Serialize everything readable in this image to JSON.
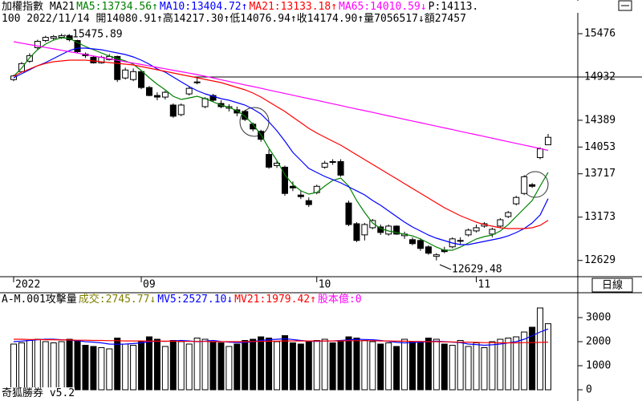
{
  "chart_data": [
    {
      "type": "candlestick",
      "legend_title": "加權指數 MA21",
      "subtitle": "100 2022/11/14 開14080.91↑高14217.30↑低14076.94↑收14174.90↑量7056517↓額27457",
      "notes": [
        {
          "text": "P:14113.",
          "color": "#000000"
        }
      ],
      "categories": [
        "2022",
        null,
        null,
        null,
        null,
        null,
        null,
        null,
        null,
        null,
        null,
        null,
        null,
        null,
        null,
        null,
        "09",
        null,
        null,
        null,
        null,
        null,
        null,
        null,
        null,
        null,
        null,
        null,
        null,
        null,
        null,
        null,
        null,
        null,
        null,
        null,
        null,
        null,
        "10",
        null,
        null,
        null,
        null,
        null,
        null,
        null,
        null,
        null,
        null,
        null,
        null,
        null,
        null,
        null,
        null,
        null,
        null,
        null,
        "11",
        null,
        null,
        null,
        null,
        null,
        null,
        null,
        null,
        null
      ],
      "period_label": "日線",
      "colors": {
        "up": "#ffffff",
        "down": "#000000",
        "edge": "#000000"
      },
      "candles": {
        "open": [
          14900,
          15000,
          15130,
          15300,
          15390,
          15420,
          15430,
          15450,
          15390,
          15220,
          15180,
          15110,
          15150,
          15190,
          14920,
          14900,
          15000,
          14800,
          14700,
          14680,
          14580,
          14460,
          14720,
          14860,
          14560,
          14700,
          14600,
          14540,
          14520,
          14500,
          14340,
          14250,
          13960,
          13820,
          13800,
          13560,
          13450,
          13380,
          13480,
          13800,
          13870,
          13870,
          13350,
          13090,
          12950,
          13040,
          13050,
          12960,
          13060,
          12940,
          12890,
          12880,
          12800,
          12680,
          12760,
          12800,
          12870,
          12950,
          13000,
          13060,
          12960,
          13060,
          13180,
          13340,
          13470,
          13580,
          13920,
          14080.91
        ],
        "high": [
          14960,
          15120,
          15230,
          15400,
          15450,
          15460,
          15475.89,
          15470,
          15400,
          15240,
          15200,
          15200,
          15220,
          15200,
          15050,
          15040,
          15010,
          14820,
          14740,
          14760,
          14600,
          14600,
          14810,
          14920,
          14680,
          14720,
          14640,
          14590,
          14560,
          14520,
          14360,
          14270,
          14020,
          13880,
          13820,
          13620,
          13500,
          13420,
          13580,
          13880,
          13900,
          13900,
          13380,
          13110,
          13100,
          13150,
          13080,
          13080,
          13070,
          12990,
          12920,
          12910,
          12820,
          12720,
          12800,
          12920,
          12920,
          13030,
          13080,
          13110,
          13040,
          13160,
          13250,
          13440,
          13700,
          13600,
          14050,
          14217.3
        ],
        "low": [
          14880,
          14990,
          15110,
          15280,
          15370,
          15400,
          15410,
          15380,
          15230,
          15170,
          15100,
          15100,
          15140,
          14870,
          14900,
          14880,
          14780,
          14690,
          14640,
          14650,
          14420,
          14440,
          14700,
          14840,
          14540,
          14620,
          14540,
          14500,
          14440,
          14380,
          14250,
          14120,
          13780,
          13790,
          13440,
          13500,
          13400,
          13300,
          13460,
          13780,
          13830,
          13680,
          13060,
          12860,
          12880,
          13020,
          12950,
          12940,
          12950,
          12900,
          12820,
          12750,
          12700,
          12629.48,
          12720,
          12780,
          12830,
          12930,
          12980,
          13040,
          12920,
          13040,
          13160,
          13320,
          13450,
          13540,
          13900,
          14076.94
        ],
        "close": [
          14945,
          15100,
          15200,
          15380,
          15430,
          15440,
          15450,
          15400,
          15250,
          15200,
          15110,
          15180,
          15190,
          14900,
          15020,
          15000,
          14800,
          14700,
          14680,
          14740,
          14440,
          14580,
          14790,
          14870,
          14660,
          14640,
          14560,
          14560,
          14480,
          14400,
          14280,
          14150,
          13800,
          13850,
          13470,
          13540,
          13430,
          13330,
          13560,
          13850,
          13860,
          13700,
          13080,
          12880,
          13080,
          13130,
          12980,
          13060,
          12960,
          12960,
          12840,
          12780,
          12720,
          12700,
          12740,
          12900,
          12880,
          13010,
          13040,
          13090,
          13020,
          13140,
          13230,
          13420,
          13680,
          13560,
          14030,
          14174.9
        ]
      },
      "series": [
        {
          "name": "MA5:13734.56↑",
          "color": "#008000",
          "values": [
            14942,
            15043,
            15174,
            15275,
            15345,
            15396,
            15426,
            15416,
            15365,
            15315,
            15275,
            15234,
            15194,
            15164,
            15134,
            15093,
            15013,
            14922,
            14842,
            14771,
            14691,
            14650,
            14670,
            14691,
            14660,
            14620,
            14580,
            14550,
            14509,
            14439,
            14338,
            14207,
            14036,
            13885,
            13704,
            13583,
            13503,
            13462,
            13482,
            13563,
            13634,
            13664,
            13563,
            13382,
            13231,
            13100,
            13029,
            12999,
            12979,
            12958,
            12938,
            12898,
            12848,
            12797,
            12757,
            12757,
            12797,
            12848,
            12898,
            12928,
            12948,
            12999,
            13079,
            13180,
            13281,
            13382,
            13563,
            13734.56
          ]
        },
        {
          "name": "MA10:13404.72↑",
          "color": "#0000ff",
          "values": [
            14922,
            14973,
            15023,
            15073,
            15114,
            15164,
            15214,
            15265,
            15295,
            15295,
            15285,
            15275,
            15254,
            15234,
            15214,
            15184,
            15144,
            15093,
            15033,
            14993,
            14932,
            14872,
            14812,
            14761,
            14721,
            14691,
            14660,
            14640,
            14610,
            14580,
            14530,
            14469,
            14368,
            14258,
            14127,
            13986,
            13885,
            13784,
            13734,
            13684,
            13644,
            13603,
            13553,
            13503,
            13452,
            13382,
            13321,
            13251,
            13180,
            13110,
            13049,
            12999,
            12948,
            12908,
            12878,
            12848,
            12828,
            12828,
            12848,
            12868,
            12888,
            12908,
            12938,
            12979,
            13029,
            13100,
            13200,
            13404.72
          ]
        },
        {
          "name": "MA21:13133.18↑",
          "color": "#ff0000",
          "values": [
            14942,
            14993,
            15033,
            15073,
            15104,
            15124,
            15134,
            15144,
            15144,
            15144,
            15134,
            15124,
            15114,
            15104,
            15093,
            15083,
            15063,
            15043,
            15023,
            15003,
            14983,
            14963,
            14942,
            14922,
            14902,
            14882,
            14862,
            14832,
            14801,
            14771,
            14731,
            14681,
            14620,
            14560,
            14499,
            14429,
            14358,
            14288,
            14228,
            14177,
            14127,
            14076,
            14016,
            13956,
            13895,
            13835,
            13774,
            13714,
            13654,
            13593,
            13533,
            13472,
            13412,
            13351,
            13291,
            13241,
            13190,
            13150,
            13110,
            13079,
            13059,
            13039,
            13029,
            13029,
            13029,
            13039,
            13069,
            13133.18
          ]
        },
        {
          "name": "MA65:14010.59↓",
          "color": "#ff00ff",
          "values": [
            15375,
            15357,
            15339,
            15321,
            15303,
            15286,
            15268,
            15250,
            15232,
            15214,
            15196,
            15178,
            15160,
            15142,
            15124,
            15107,
            15089,
            15071,
            15053,
            15035,
            15017,
            14999,
            14981,
            14963,
            14941,
            14920,
            14898,
            14876,
            14855,
            14833,
            14812,
            14790,
            14768,
            14747,
            14725,
            14704,
            14682,
            14660,
            14639,
            14617,
            14596,
            14574,
            14552,
            14531,
            14509,
            14488,
            14466,
            14444,
            14423,
            14401,
            14380,
            14358,
            14336,
            14315,
            14293,
            14272,
            14250,
            14228,
            14207,
            14185,
            14164,
            14142,
            14120,
            14099,
            14077,
            14056,
            14034,
            14010.59
          ]
        }
      ],
      "price_line": 14932,
      "ylim": [
        12425,
        15899
      ],
      "yticks": [
        15476,
        14932,
        14389,
        14053,
        13717,
        13173,
        12629
      ]
    },
    {
      "type": "bar",
      "legend_title": "A-M.001攻擊量",
      "notes": [
        {
          "text": "成交:2745.77↓",
          "color": "#808000"
        },
        {
          "text": "股本億:0",
          "color": "#ff00ff"
        }
      ],
      "footer": "奇狐勝券 v5.2",
      "values": [
        1900,
        1950,
        2050,
        2100,
        2000,
        1950,
        2000,
        2100,
        2050,
        1850,
        1800,
        1750,
        1700,
        2150,
        1900,
        1850,
        2000,
        2200,
        2100,
        1800,
        2050,
        2000,
        1900,
        2150,
        2100,
        2000,
        1950,
        1800,
        1900,
        2050,
        2100,
        2200,
        2150,
        2000,
        2250,
        1950,
        1900,
        2000,
        2050,
        2100,
        1950,
        2050,
        2200,
        2150,
        2050,
        2000,
        1900,
        1950,
        1800,
        2100,
        2000,
        1950,
        2150,
        2100,
        1900,
        1850,
        2050,
        1800,
        1950,
        1750,
        2000,
        2100,
        2150,
        2200,
        2400,
        2600,
        3400,
        2745.77
      ],
      "series": [
        {
          "name": "MV5:2527.10↓",
          "color": "#0000ff",
          "values": [
            2000,
            2020,
            2050,
            2080,
            2100,
            2100,
            2080,
            2060,
            2040,
            2000,
            1980,
            1950,
            1900,
            1890,
            1900,
            1920,
            1950,
            2000,
            2020,
            2010,
            2030,
            2050,
            2030,
            2000,
            2020,
            2050,
            2010,
            1980,
            1960,
            1970,
            2000,
            2050,
            2080,
            2100,
            2120,
            2090,
            2050,
            2020,
            2010,
            2030,
            2030,
            2050,
            2070,
            2100,
            2090,
            2080,
            2050,
            2010,
            1970,
            1950,
            1960,
            1980,
            2000,
            2020,
            2000,
            1980,
            1960,
            1900,
            1880,
            1850,
            1870,
            1900,
            1950,
            2000,
            2100,
            2250,
            2400,
            2527.1
          ]
        },
        {
          "name": "MV21:1979.42↑",
          "color": "#ff0000",
          "values": [
            2100,
            2100,
            2090,
            2090,
            2080,
            2080,
            2070,
            2070,
            2060,
            2060,
            2050,
            2050,
            2040,
            2040,
            2030,
            2030,
            2030,
            2020,
            2020,
            2020,
            2020,
            2010,
            2010,
            2010,
            2010,
            2000,
            2000,
            2000,
            2000,
            2000,
            2010,
            2010,
            2020,
            2020,
            2030,
            2030,
            2030,
            2030,
            2030,
            2030,
            2030,
            2030,
            2040,
            2040,
            2040,
            2040,
            2030,
            2030,
            2020,
            2020,
            2010,
            2010,
            2000,
            2000,
            1990,
            1990,
            1980,
            1980,
            1970,
            1960,
            1960,
            1950,
            1950,
            1950,
            1960,
            1960,
            1970,
            1979.42
          ]
        }
      ],
      "ylim": [
        0,
        3800
      ],
      "yticks": [
        0,
        1000,
        2000,
        3000
      ]
    }
  ]
}
